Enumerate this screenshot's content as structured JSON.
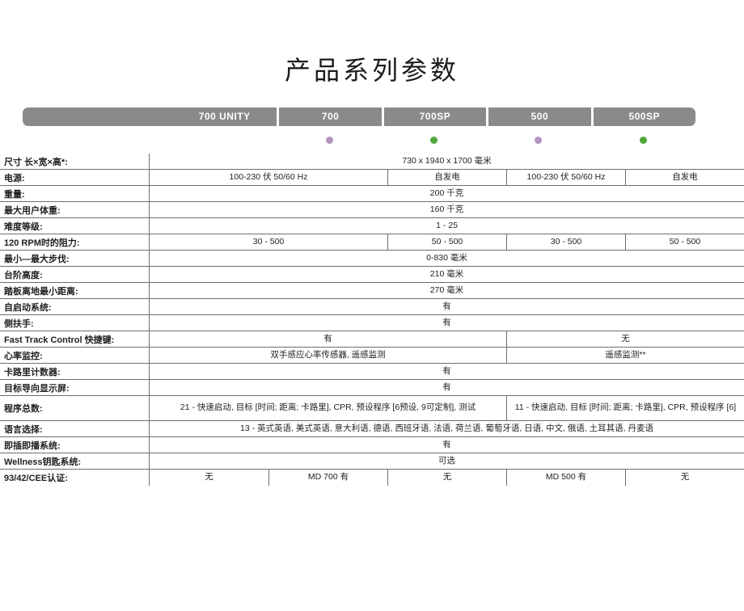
{
  "title": "产品系列参数",
  "header": {
    "bar_color": "#8a8a8a",
    "columns": [
      {
        "label": "700 UNITY",
        "dot": null
      },
      {
        "label": "700",
        "dot": "#b394bf"
      },
      {
        "label": "700SP",
        "dot": "#50a73c"
      },
      {
        "label": "500",
        "dot": "#b394bf"
      },
      {
        "label": "500SP",
        "dot": "#50a73c"
      }
    ]
  },
  "colors": {
    "header_gray": "#8a8a8a",
    "dot_purple": "#b394bf",
    "dot_green": "#50a73c"
  },
  "table": {
    "rows": [
      {
        "label": "尺寸  长×宽×高*:",
        "cells": [
          {
            "span": 5,
            "text": "730 x 1940 x 1700 毫米"
          }
        ]
      },
      {
        "label": "电源:",
        "cells": [
          {
            "span": 2,
            "text": "100-230 伏 50/60 Hz"
          },
          {
            "span": 1,
            "text": "自发电"
          },
          {
            "span": 1,
            "text": "100-230 伏 50/60 Hz"
          },
          {
            "span": 1,
            "text": "自发电"
          }
        ]
      },
      {
        "label": "重量:",
        "cells": [
          {
            "span": 5,
            "text": "200 千克"
          }
        ]
      },
      {
        "label": "最大用户体重:",
        "cells": [
          {
            "span": 5,
            "text": "160 千克"
          }
        ]
      },
      {
        "label": "难度等级:",
        "cells": [
          {
            "span": 5,
            "text": "1 - 25"
          }
        ]
      },
      {
        "label": "120 RPM时的阻力:",
        "cells": [
          {
            "span": 2,
            "text": "30 - 500"
          },
          {
            "span": 1,
            "text": "50 - 500"
          },
          {
            "span": 1,
            "text": "30 - 500"
          },
          {
            "span": 1,
            "text": "50 - 500"
          }
        ]
      },
      {
        "label": "最小—最大步伐:",
        "cells": [
          {
            "span": 5,
            "text": "0-830 毫米"
          }
        ]
      },
      {
        "label": "台阶高度:",
        "cells": [
          {
            "span": 5,
            "text": "210 毫米"
          }
        ]
      },
      {
        "label": "踏板离地最小距离:",
        "cells": [
          {
            "span": 5,
            "text": "270 毫米"
          }
        ]
      },
      {
        "label": "自启动系统:",
        "cells": [
          {
            "span": 5,
            "text": "有"
          }
        ]
      },
      {
        "label": "侧扶手:",
        "cells": [
          {
            "span": 5,
            "text": "有"
          }
        ]
      },
      {
        "label": "Fast Track Control 快捷键:",
        "cells": [
          {
            "span": 3,
            "text": "有"
          },
          {
            "span": 2,
            "text": "无"
          }
        ]
      },
      {
        "label": "心率监控:",
        "cells": [
          {
            "span": 3,
            "text": "双手感应心率传感器, 遥感监测"
          },
          {
            "span": 2,
            "text": "遥感监测**"
          }
        ]
      },
      {
        "label": "卡路里计数器:",
        "cells": [
          {
            "span": 5,
            "text": "有"
          }
        ]
      },
      {
        "label": "目标导向显示屏:",
        "cells": [
          {
            "span": 5,
            "text": "有"
          }
        ]
      },
      {
        "label": "程序总数:",
        "tall": true,
        "cells": [
          {
            "span": 3,
            "text": "21 - 快速启动, 目标 [时间; 距离; 卡路里], CPR, 预设程序 [6预设, 9可定制], 测试"
          },
          {
            "span": 2,
            "text": "11 - 快速启动, 目标 [时间; 距离; 卡路里], CPR, 预设程序 [6]"
          }
        ]
      },
      {
        "label": "语言选择:",
        "cells": [
          {
            "span": 5,
            "text": "13 - 英式英语, 美式英语, 意大利语, 德语, 西班牙语, 法语, 荷兰语, 葡萄牙语, 日语, 中文, 俄语, 土耳其语, 丹麦语"
          }
        ]
      },
      {
        "label": "即插即播系统:",
        "cells": [
          {
            "span": 5,
            "text": "有"
          }
        ]
      },
      {
        "label": "Wellness钥匙系统:",
        "cells": [
          {
            "span": 5,
            "text": "可选"
          }
        ]
      },
      {
        "label": "93/42/CEE认证:",
        "cells": [
          {
            "span": 1,
            "text": "无"
          },
          {
            "span": 1,
            "text": "MD 700 有"
          },
          {
            "span": 1,
            "text": "无"
          },
          {
            "span": 1,
            "text": "MD 500 有"
          },
          {
            "span": 1,
            "text": "无"
          }
        ]
      }
    ]
  }
}
